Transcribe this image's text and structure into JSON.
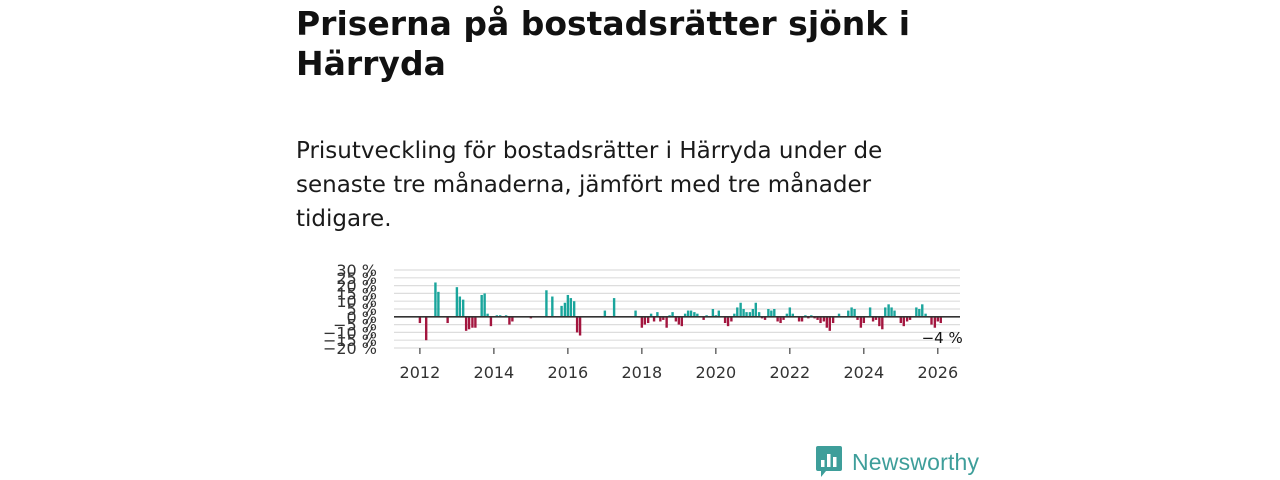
{
  "title": "Priserna på bostadsrätter sjönk i Härryda",
  "subtitle": "Prisutveckling för bostadsrätter i Härryda under de senaste tre månaderna, jämfört med tre månader tidigare.",
  "brand": {
    "name": "Newsworthy",
    "icon": "newsworthy-logo-icon"
  },
  "colors": {
    "positive": "#1aa59c",
    "negative": "#a3163f",
    "grid": "#dddddd",
    "zero": "#333333"
  },
  "chart_data": {
    "type": "bar",
    "title": "Priserna på bostadsrätter sjönk i Härryda",
    "xlabel": "",
    "ylabel": "",
    "x_range": [
      2011.3,
      2026.6
    ],
    "ylim": [
      -20,
      30
    ],
    "y_ticks": [
      30,
      25,
      20,
      15,
      10,
      5,
      0,
      -5,
      -10,
      -15,
      -20
    ],
    "y_tick_labels": [
      "30 %",
      "25 %",
      "20 %",
      "15 %",
      "10 %",
      "5 %",
      "0 %",
      "−5 %",
      "−10 %",
      "−15 %",
      "−20 %"
    ],
    "x_ticks": [
      2012,
      2014,
      2016,
      2018,
      2020,
      2022,
      2024,
      2026
    ],
    "x_tick_labels": [
      "2012",
      "2014",
      "2016",
      "2018",
      "2020",
      "2022",
      "2024",
      "2026"
    ],
    "last_value_label": "−4 %",
    "series": [
      {
        "name": "Prisutveckling",
        "points": [
          [
            2012.0,
            -4
          ],
          [
            2012.17,
            -15
          ],
          [
            2012.42,
            22
          ],
          [
            2012.5,
            16
          ],
          [
            2012.75,
            -4
          ],
          [
            2013.0,
            19
          ],
          [
            2013.08,
            13
          ],
          [
            2013.17,
            11
          ],
          [
            2013.25,
            -9
          ],
          [
            2013.33,
            -8
          ],
          [
            2013.42,
            -7
          ],
          [
            2013.5,
            -7
          ],
          [
            2013.67,
            14
          ],
          [
            2013.75,
            15
          ],
          [
            2013.83,
            2
          ],
          [
            2013.92,
            -6
          ],
          [
            2014.08,
            1
          ],
          [
            2014.17,
            1
          ],
          [
            2014.33,
            1
          ],
          [
            2014.42,
            -5
          ],
          [
            2014.5,
            -3
          ],
          [
            2015.0,
            -1
          ],
          [
            2015.42,
            17
          ],
          [
            2015.58,
            13
          ],
          [
            2015.83,
            7
          ],
          [
            2015.92,
            9
          ],
          [
            2016.0,
            14
          ],
          [
            2016.08,
            12
          ],
          [
            2016.17,
            10
          ],
          [
            2016.25,
            -10
          ],
          [
            2016.33,
            -12
          ],
          [
            2017.0,
            4
          ],
          [
            2017.25,
            12
          ],
          [
            2017.83,
            4
          ],
          [
            2018.0,
            -7
          ],
          [
            2018.08,
            -5
          ],
          [
            2018.17,
            -4
          ],
          [
            2018.25,
            2
          ],
          [
            2018.33,
            -3
          ],
          [
            2018.42,
            3
          ],
          [
            2018.5,
            -3
          ],
          [
            2018.58,
            -2
          ],
          [
            2018.67,
            -7
          ],
          [
            2018.75,
            1
          ],
          [
            2018.83,
            3
          ],
          [
            2018.92,
            -3
          ],
          [
            2019.0,
            -5
          ],
          [
            2019.08,
            -6
          ],
          [
            2019.17,
            2
          ],
          [
            2019.25,
            4
          ],
          [
            2019.33,
            4
          ],
          [
            2019.42,
            3
          ],
          [
            2019.5,
            2
          ],
          [
            2019.67,
            -2
          ],
          [
            2019.75,
            1
          ],
          [
            2019.92,
            5
          ],
          [
            2020.0,
            1
          ],
          [
            2020.08,
            4
          ],
          [
            2020.25,
            -4
          ],
          [
            2020.33,
            -6
          ],
          [
            2020.42,
            -3
          ],
          [
            2020.5,
            2
          ],
          [
            2020.58,
            6
          ],
          [
            2020.67,
            9
          ],
          [
            2020.75,
            5
          ],
          [
            2020.83,
            3
          ],
          [
            2020.92,
            3
          ],
          [
            2021.0,
            5
          ],
          [
            2021.08,
            9
          ],
          [
            2021.17,
            3
          ],
          [
            2021.25,
            -1
          ],
          [
            2021.33,
            -2
          ],
          [
            2021.42,
            5
          ],
          [
            2021.5,
            4
          ],
          [
            2021.58,
            5
          ],
          [
            2021.67,
            -3
          ],
          [
            2021.75,
            -4
          ],
          [
            2021.83,
            -2
          ],
          [
            2021.92,
            2
          ],
          [
            2022.0,
            6
          ],
          [
            2022.08,
            2
          ],
          [
            2022.25,
            -3
          ],
          [
            2022.33,
            -3
          ],
          [
            2022.42,
            1
          ],
          [
            2022.5,
            -1
          ],
          [
            2022.58,
            1
          ],
          [
            2022.67,
            -1
          ],
          [
            2022.75,
            -2
          ],
          [
            2022.83,
            -4
          ],
          [
            2022.92,
            -3
          ],
          [
            2023.0,
            -7
          ],
          [
            2023.08,
            -9
          ],
          [
            2023.17,
            -4
          ],
          [
            2023.33,
            2
          ],
          [
            2023.58,
            4
          ],
          [
            2023.67,
            6
          ],
          [
            2023.75,
            5
          ],
          [
            2023.83,
            -2
          ],
          [
            2023.92,
            -7
          ],
          [
            2024.0,
            -4
          ],
          [
            2024.17,
            6
          ],
          [
            2024.25,
            -3
          ],
          [
            2024.33,
            -2
          ],
          [
            2024.42,
            -6
          ],
          [
            2024.5,
            -8
          ],
          [
            2024.58,
            6
          ],
          [
            2024.67,
            8
          ],
          [
            2024.75,
            6
          ],
          [
            2024.83,
            4
          ],
          [
            2025.0,
            -4
          ],
          [
            2025.08,
            -6
          ],
          [
            2025.17,
            -3
          ],
          [
            2025.25,
            -2
          ],
          [
            2025.42,
            6
          ],
          [
            2025.5,
            5
          ],
          [
            2025.58,
            8
          ],
          [
            2025.67,
            2
          ],
          [
            2025.83,
            -5
          ],
          [
            2025.92,
            -7
          ],
          [
            2026.0,
            -3
          ],
          [
            2026.08,
            -4
          ]
        ]
      }
    ]
  }
}
